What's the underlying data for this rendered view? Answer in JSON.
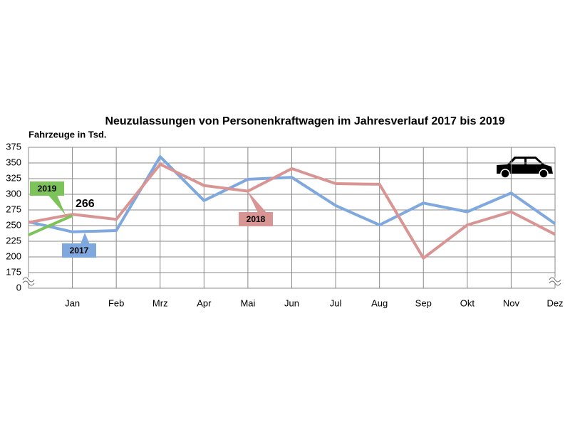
{
  "chart_data": {
    "type": "line",
    "title": "Neuzulassungen von Personenkraftwagen im Jahresverlauf 2017 bis 2019",
    "y_label": "Fahrzeuge in Tsd.",
    "categories": [
      null,
      "Jan",
      "Feb",
      "Mrz",
      "Apr",
      "Mai",
      "Jun",
      "Jul",
      "Aug",
      "Sep",
      "Okt",
      "Nov",
      "Dez"
    ],
    "series": [
      {
        "name": "2017",
        "color": "#7fa8de",
        "values": [
          256,
          240,
          242,
          360,
          290,
          324,
          327,
          282,
          251,
          286,
          272,
          302,
          253
        ]
      },
      {
        "name": "2018",
        "color": "#d99594",
        "values": [
          255,
          268,
          260,
          348,
          314,
          305,
          341,
          317,
          316,
          198,
          251,
          272,
          236
        ]
      },
      {
        "name": "2019",
        "color": "#7cc35a",
        "values": [
          235,
          266,
          null,
          null,
          null,
          null,
          null,
          null,
          null,
          null,
          null,
          null,
          null
        ]
      }
    ],
    "ylim": [
      0,
      375
    ],
    "axis_break": [
      0,
      175
    ],
    "yticks": [
      0,
      175,
      200,
      225,
      250,
      275,
      300,
      325,
      350,
      375
    ],
    "grid": true
  }
}
